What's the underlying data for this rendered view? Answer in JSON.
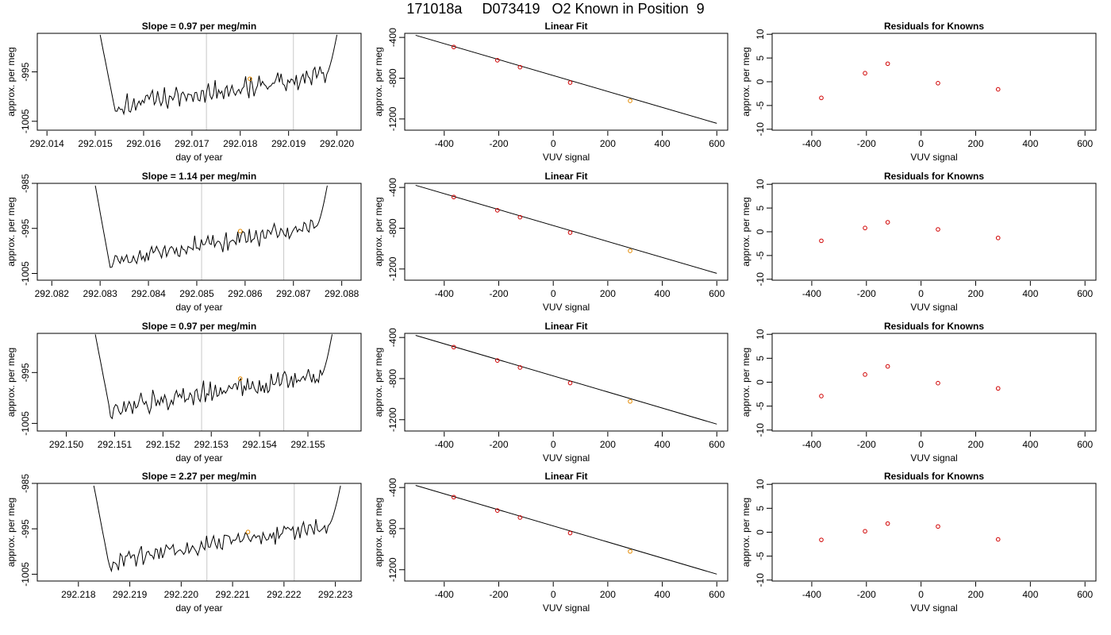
{
  "page": {
    "title": "171018a     D073419   O2 Known in Position  9"
  },
  "colors": {
    "trace": "#000000",
    "known_point": "#e58a00",
    "residual_point": "#d00000",
    "fit_line": "#000000",
    "guide_line": "#c8c8c8",
    "frame": "#000000"
  },
  "chart_data": [
    {
      "type": "line",
      "row": 1,
      "column": "trace",
      "title": "Slope =  0.97  per meg/min",
      "xlabel": "day of year",
      "ylabel": "approx. per meg",
      "xlim": [
        292.0138,
        292.0205
      ],
      "ylim": [
        -1006.8,
        -987.2
      ],
      "xticks": [
        "292.014",
        "292.015",
        "292.016",
        "292.017",
        "292.018",
        "292.019",
        "292.020"
      ],
      "yticks": [
        "-995",
        "-1005"
      ],
      "guide_lines_x": [
        292.0173,
        292.0191
      ],
      "trace_x_range": [
        292.0151,
        292.02
      ],
      "trace_start": -987.5,
      "trace_dip": -1002.0,
      "trace_end": -995.6,
      "trace_rise_to": -987.5,
      "wiggle_amplitude": 1.5,
      "marker": {
        "x": 292.0182,
        "y": -996.4
      }
    },
    {
      "type": "scatter",
      "row": 1,
      "column": "fit",
      "title": "Linear Fit",
      "xlabel": "VUV signal",
      "ylabel": "approx. per meg",
      "xlim": [
        -545,
        640
      ],
      "ylim": [
        -1310,
        -360
      ],
      "xticks": [
        -400,
        -200,
        0,
        200,
        400,
        600
      ],
      "yticks": [
        -400,
        -800,
        -1200
      ],
      "points": [
        {
          "x": -365,
          "y": -494
        },
        {
          "x": -205,
          "y": -624
        },
        {
          "x": -122,
          "y": -692
        },
        {
          "x": 62,
          "y": -843
        },
        {
          "x": 282,
          "y": -1022
        }
      ],
      "fit_line": {
        "x1": -505,
        "y1": -379,
        "x2": 600,
        "y2": -1243
      }
    },
    {
      "type": "scatter",
      "row": 1,
      "column": "residuals",
      "title": "Residuals for Knowns",
      "xlabel": "VUV signal",
      "ylabel": "approx. per meg",
      "xlim": [
        -545,
        640
      ],
      "ylim": [
        -10.2,
        10.2
      ],
      "xticks": [
        -400,
        -200,
        0,
        200,
        400,
        600
      ],
      "yticks": [
        10,
        5,
        0,
        -5,
        -10
      ],
      "points": [
        {
          "x": -365,
          "y": -3.4
        },
        {
          "x": -205,
          "y": 1.8
        },
        {
          "x": -122,
          "y": 3.8
        },
        {
          "x": 62,
          "y": -0.3
        },
        {
          "x": 282,
          "y": -1.6
        }
      ]
    },
    {
      "type": "line",
      "row": 2,
      "column": "trace",
      "title": "Slope =  1.14  per meg/min",
      "xlabel": "day of year",
      "ylabel": "approx. per meg",
      "xlim": [
        292.0817,
        292.0884
      ],
      "ylim": [
        -1006.5,
        -985
      ],
      "xticks": [
        "292.082",
        "292.083",
        "292.084",
        "292.085",
        "292.086",
        "292.087",
        "292.088"
      ],
      "yticks": [
        "-985",
        "-995",
        "-1005"
      ],
      "guide_lines_x": [
        292.0851,
        292.0868
      ],
      "trace_x_range": [
        292.0829,
        292.0877
      ],
      "trace_start": -985.5,
      "trace_dip": -1002.5,
      "trace_end": -994.5,
      "trace_rise_to": -985.5,
      "wiggle_amplitude": 1.4,
      "marker": {
        "x": 292.0859,
        "y": -995.6
      }
    },
    {
      "type": "scatter",
      "row": 2,
      "column": "fit",
      "title": "Linear Fit",
      "xlabel": "VUV signal",
      "ylabel": "approx. per meg",
      "xlim": [
        -545,
        640
      ],
      "ylim": [
        -1310,
        -360
      ],
      "xticks": [
        -400,
        -200,
        0,
        200,
        400,
        600
      ],
      "yticks": [
        -400,
        -800,
        -1200
      ],
      "points": [
        {
          "x": -365,
          "y": -494
        },
        {
          "x": -205,
          "y": -624
        },
        {
          "x": -122,
          "y": -692
        },
        {
          "x": 62,
          "y": -843
        },
        {
          "x": 282,
          "y": -1022
        }
      ],
      "fit_line": {
        "x1": -505,
        "y1": -379,
        "x2": 600,
        "y2": -1243
      }
    },
    {
      "type": "scatter",
      "row": 2,
      "column": "residuals",
      "title": "Residuals for Knowns",
      "xlabel": "VUV signal",
      "ylabel": "approx. per meg",
      "xlim": [
        -545,
        640
      ],
      "ylim": [
        -10.2,
        10.2
      ],
      "xticks": [
        -400,
        -200,
        0,
        200,
        400,
        600
      ],
      "yticks": [
        10,
        5,
        0,
        -5,
        -10
      ],
      "points": [
        {
          "x": -365,
          "y": -1.9
        },
        {
          "x": -205,
          "y": 0.8
        },
        {
          "x": -122,
          "y": 2.0
        },
        {
          "x": 62,
          "y": 0.5
        },
        {
          "x": 282,
          "y": -1.3
        }
      ]
    },
    {
      "type": "line",
      "row": 3,
      "column": "trace",
      "title": "Slope =  0.97  per meg/min",
      "xlabel": "day of year",
      "ylabel": "approx. per meg",
      "xlim": [
        292.1494,
        292.1561
      ],
      "ylim": [
        -1006.5,
        -987.3
      ],
      "xticks": [
        "292.150",
        "292.151",
        "292.152",
        "292.153",
        "292.154",
        "292.155"
      ],
      "yticks": [
        "-995",
        "-1005"
      ],
      "guide_lines_x": [
        292.1528,
        292.1545
      ],
      "trace_x_range": [
        292.1506,
        292.1555
      ],
      "trace_start": -987.5,
      "trace_dip": -1002.0,
      "trace_end": -995.6,
      "trace_rise_to": -987.5,
      "wiggle_amplitude": 1.6,
      "marker": {
        "x": 292.1536,
        "y": -996.2
      }
    },
    {
      "type": "scatter",
      "row": 3,
      "column": "fit",
      "title": "Linear Fit",
      "xlabel": "VUV signal",
      "ylabel": "approx. per meg",
      "xlim": [
        -545,
        640
      ],
      "ylim": [
        -1310,
        -360
      ],
      "xticks": [
        -400,
        -200,
        0,
        200,
        400,
        600
      ],
      "yticks": [
        -400,
        -800,
        -1200
      ],
      "points": [
        {
          "x": -365,
          "y": -494
        },
        {
          "x": -205,
          "y": -624
        },
        {
          "x": -122,
          "y": -692
        },
        {
          "x": 62,
          "y": -843
        },
        {
          "x": 282,
          "y": -1022
        }
      ],
      "fit_line": {
        "x1": -505,
        "y1": -379,
        "x2": 600,
        "y2": -1243
      }
    },
    {
      "type": "scatter",
      "row": 3,
      "column": "residuals",
      "title": "Residuals for Knowns",
      "xlabel": "VUV signal",
      "ylabel": "approx. per meg",
      "xlim": [
        -545,
        640
      ],
      "ylim": [
        -10.2,
        10.2
      ],
      "xticks": [
        -400,
        -200,
        0,
        200,
        400,
        600
      ],
      "yticks": [
        10,
        5,
        0,
        -5,
        -10
      ],
      "points": [
        {
          "x": -365,
          "y": -2.9
        },
        {
          "x": -205,
          "y": 1.6
        },
        {
          "x": -122,
          "y": 3.3
        },
        {
          "x": 62,
          "y": -0.2
        },
        {
          "x": 282,
          "y": -1.3
        }
      ]
    },
    {
      "type": "line",
      "row": 4,
      "column": "trace",
      "title": "Slope =  2.27  per meg/min",
      "xlabel": "day of year",
      "ylabel": "approx. per meg",
      "xlim": [
        292.2172,
        292.2235
      ],
      "ylim": [
        -1006.5,
        -985
      ],
      "xticks": [
        "292.218",
        "292.219",
        "292.220",
        "292.221",
        "292.222",
        "292.223"
      ],
      "yticks": [
        "-985",
        "-995",
        "-1005"
      ],
      "guide_lines_x": [
        292.2205,
        292.2222
      ],
      "trace_x_range": [
        292.2183,
        292.2231
      ],
      "trace_start": -985.5,
      "trace_dip": -1002.5,
      "trace_end": -994.0,
      "trace_rise_to": -985.5,
      "wiggle_amplitude": 1.5,
      "marker": {
        "x": 292.2213,
        "y": -995.7
      }
    },
    {
      "type": "scatter",
      "row": 4,
      "column": "fit",
      "title": "Linear Fit",
      "xlabel": "VUV signal",
      "ylabel": "approx. per meg",
      "xlim": [
        -545,
        640
      ],
      "ylim": [
        -1310,
        -360
      ],
      "xticks": [
        -400,
        -200,
        0,
        200,
        400,
        600
      ],
      "yticks": [
        -400,
        -800,
        -1200
      ],
      "points": [
        {
          "x": -365,
          "y": -494
        },
        {
          "x": -205,
          "y": -624
        },
        {
          "x": -122,
          "y": -692
        },
        {
          "x": 62,
          "y": -843
        },
        {
          "x": 282,
          "y": -1022
        }
      ],
      "fit_line": {
        "x1": -505,
        "y1": -379,
        "x2": 600,
        "y2": -1243
      }
    },
    {
      "type": "scatter",
      "row": 4,
      "column": "residuals",
      "title": "Residuals for Knowns",
      "xlabel": "VUV signal",
      "ylabel": "approx. per meg",
      "xlim": [
        -545,
        640
      ],
      "ylim": [
        -10.2,
        10.2
      ],
      "xticks": [
        -400,
        -200,
        0,
        200,
        400,
        600
      ],
      "yticks": [
        10,
        5,
        0,
        -5,
        -10
      ],
      "points": [
        {
          "x": -365,
          "y": -1.6
        },
        {
          "x": -205,
          "y": 0.2
        },
        {
          "x": -122,
          "y": 1.8
        },
        {
          "x": 62,
          "y": 1.2
        },
        {
          "x": 282,
          "y": -1.5
        }
      ]
    }
  ]
}
